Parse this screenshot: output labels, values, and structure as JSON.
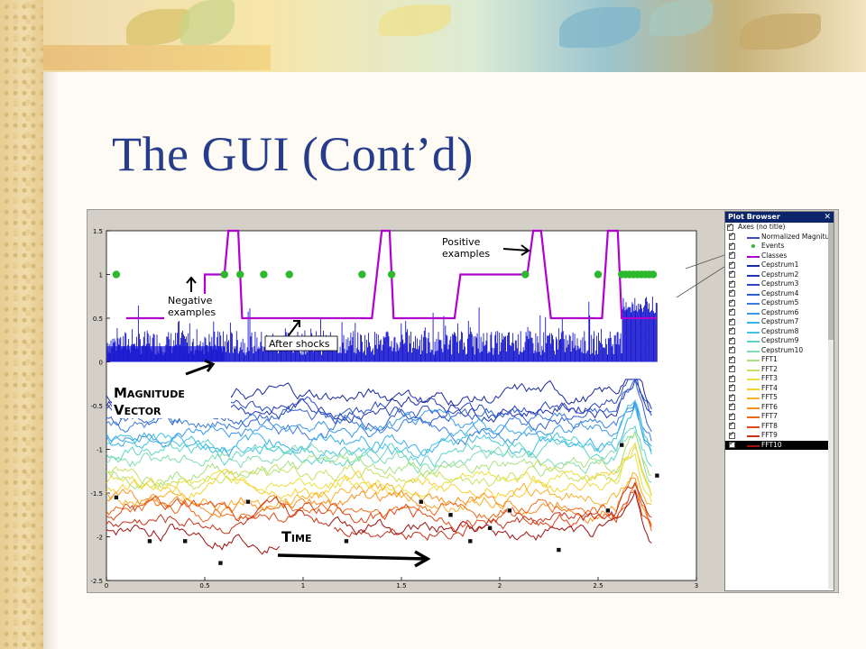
{
  "slide": {
    "title": "The GUI (Cont’d)",
    "accent_color": "#283c8c"
  },
  "plot": {
    "y_ticks": [
      "1.5",
      "1",
      "0.5",
      "0",
      "-0.5",
      "-1",
      "-1.5",
      "-2",
      "-2.5"
    ],
    "x_ticks": [
      "0",
      "0.5",
      "1",
      "1.5",
      "2",
      "2.5",
      "3"
    ],
    "annotations": {
      "positive": [
        "Positive",
        "examples"
      ],
      "negative": [
        "Negative",
        "examples"
      ],
      "after_shocks": "After shocks",
      "magnitude": [
        "Magnitude",
        "Vector"
      ],
      "time": "Time"
    }
  },
  "plot_browser": {
    "title": "Plot Browser",
    "close_icon": "close-icon",
    "items": [
      {
        "label": "Axes (no title)",
        "color": "",
        "type": "root",
        "checked": true
      },
      {
        "label": "Normalized Magnitude",
        "color": "#3b4cc0",
        "type": "line",
        "checked": true
      },
      {
        "label": "Events",
        "color": "#2db82d",
        "type": "dot",
        "checked": true
      },
      {
        "label": "Classes",
        "color": "#b000d0",
        "type": "line",
        "checked": true
      },
      {
        "label": "Cepstrum1",
        "color": "#1a2aa0",
        "type": "line",
        "checked": true
      },
      {
        "label": "Cepstrum2",
        "color": "#2234b0",
        "type": "line",
        "checked": true
      },
      {
        "label": "Cepstrum3",
        "color": "#2a48c0",
        "type": "line",
        "checked": true
      },
      {
        "label": "Cepstrum4",
        "color": "#3060d0",
        "type": "line",
        "checked": true
      },
      {
        "label": "Cepstrum5",
        "color": "#3a7ce0",
        "type": "line",
        "checked": true
      },
      {
        "label": "Cepstrum6",
        "color": "#3a98e8",
        "type": "line",
        "checked": true
      },
      {
        "label": "Cepstrum7",
        "color": "#38b0ec",
        "type": "line",
        "checked": true
      },
      {
        "label": "Cepstrum8",
        "color": "#40c4e0",
        "type": "line",
        "checked": true
      },
      {
        "label": "Cepstrum9",
        "color": "#5cd4c8",
        "type": "line",
        "checked": true
      },
      {
        "label": "Cepstrum10",
        "color": "#80dcb0",
        "type": "line",
        "checked": true
      },
      {
        "label": "FFT1",
        "color": "#a8e080",
        "type": "line",
        "checked": true
      },
      {
        "label": "FFT2",
        "color": "#c8e060",
        "type": "line",
        "checked": true
      },
      {
        "label": "FFT3",
        "color": "#e8e040",
        "type": "line",
        "checked": true
      },
      {
        "label": "FFT4",
        "color": "#f8d030",
        "type": "line",
        "checked": true
      },
      {
        "label": "FFT5",
        "color": "#f8b028",
        "type": "line",
        "checked": true
      },
      {
        "label": "FFT6",
        "color": "#f89020",
        "type": "line",
        "checked": true
      },
      {
        "label": "FFT7",
        "color": "#f06818",
        "type": "line",
        "checked": true
      },
      {
        "label": "FFT8",
        "color": "#e04818",
        "type": "line",
        "checked": true
      },
      {
        "label": "FFT9",
        "color": "#c83018",
        "type": "line",
        "checked": true
      },
      {
        "label": "FFT10",
        "color": "#a01010",
        "type": "line",
        "checked": true
      }
    ]
  }
}
